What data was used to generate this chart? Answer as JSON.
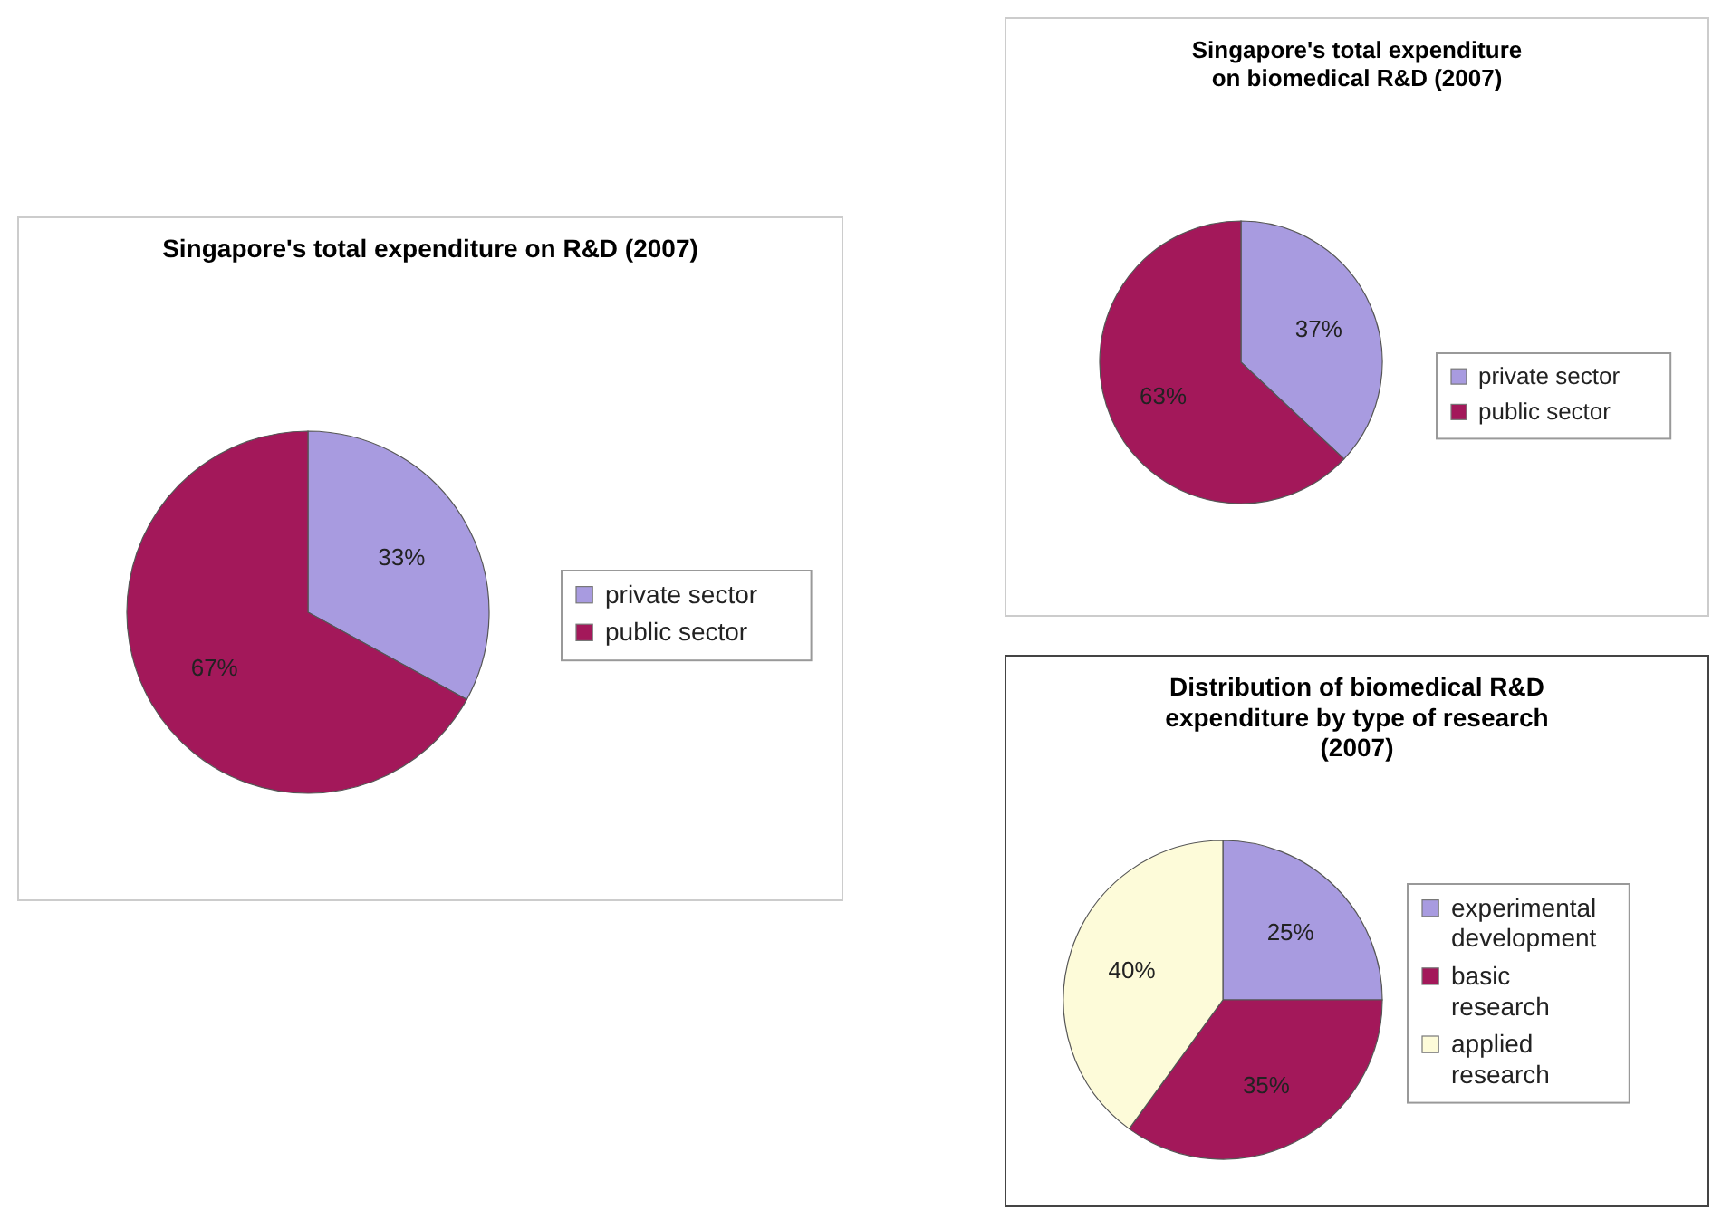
{
  "chart_data": [
    {
      "type": "pie",
      "title": "Singapore's total expenditure on R&D (2007)",
      "categories": [
        "private sector",
        "public sector"
      ],
      "values": [
        33,
        67
      ],
      "colors": [
        "#a89be0",
        "#a3185a"
      ],
      "value_labels": [
        "33%",
        "67%"
      ],
      "legend": "right"
    },
    {
      "type": "pie",
      "title": "Singapore's total expenditure on biomedical R&D (2007)",
      "categories": [
        "private sector",
        "public sector"
      ],
      "values": [
        37,
        63
      ],
      "colors": [
        "#a89be0",
        "#a3185a"
      ],
      "value_labels": [
        "37%",
        "63%"
      ],
      "legend": "right"
    },
    {
      "type": "pie",
      "title": "Distribution of biomedical R&D expenditure by type of research (2007)",
      "categories": [
        "experimental development",
        "basic research",
        "applied research"
      ],
      "values": [
        25,
        35,
        40
      ],
      "colors": [
        "#a89be0",
        "#a3185a",
        "#fdfbd9"
      ],
      "value_labels": [
        "25%",
        "35%",
        "40%"
      ],
      "legend": "right"
    }
  ]
}
